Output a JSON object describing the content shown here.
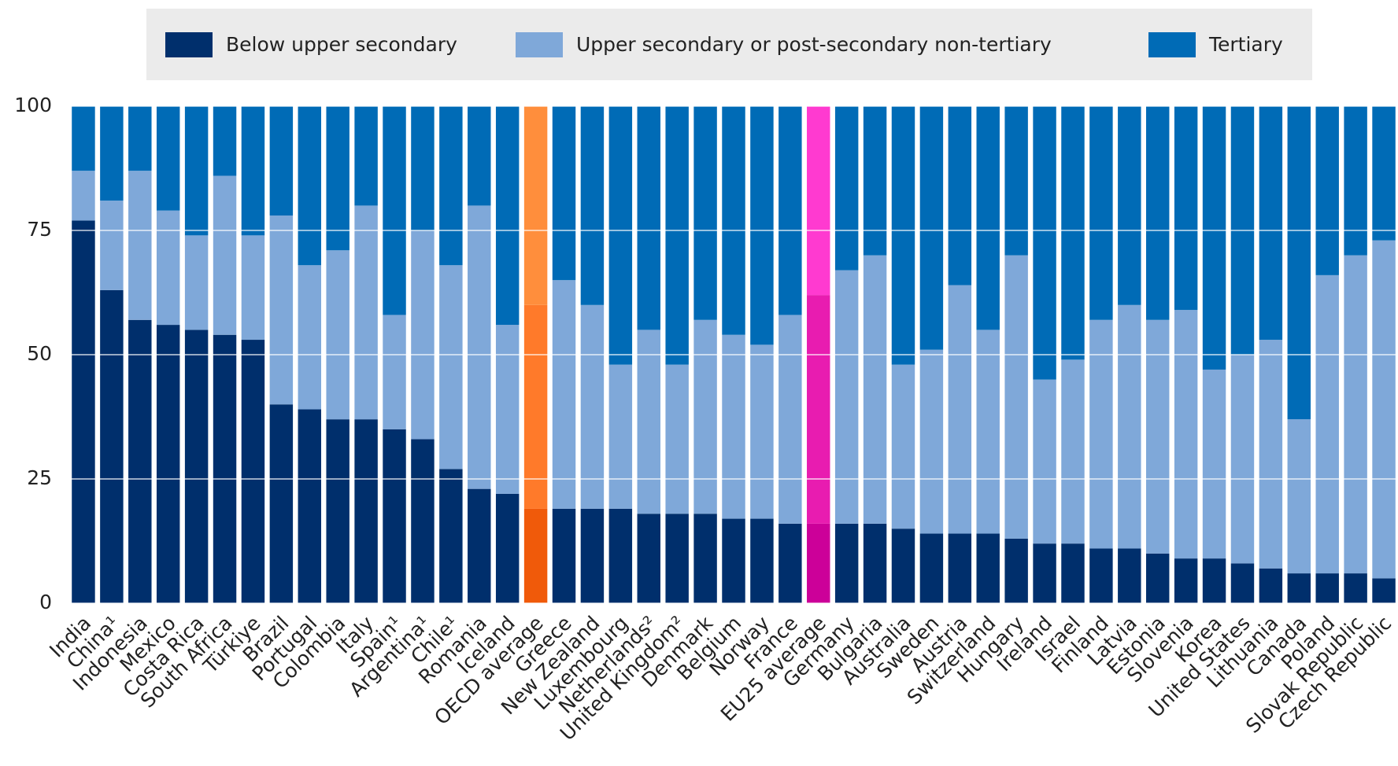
{
  "chart_data": {
    "type": "stacked_bar",
    "categories": [
      "India",
      "China¹",
      "Indonesia",
      "Mexico",
      "Costa Rica",
      "South Africa",
      "Türkiye",
      "Brazil",
      "Portugal",
      "Colombia",
      "Italy",
      "Spain¹",
      "Argentina¹",
      "Chile¹",
      "Romania",
      "Iceland",
      "OECD average",
      "Greece",
      "New Zealand",
      "Luxembourg",
      "Netherlands²",
      "United Kingdom²",
      "Denmark",
      "Belgium",
      "Norway",
      "France",
      "EU25 average",
      "Germany",
      "Bulgaria",
      "Australia",
      "Sweden",
      "Austria",
      "Switzerland",
      "Hungary",
      "Ireland",
      "Israel",
      "Finland",
      "Latvia",
      "Estonia",
      "Slovenia",
      "Korea",
      "United States",
      "Lithuania",
      "Canada",
      "Poland",
      "Slovak Republic",
      "Czech Republic"
    ],
    "series": [
      {
        "name": "Below upper secondary",
        "color": "#002f6c",
        "values": [
          77,
          63,
          57,
          56,
          55,
          54,
          53,
          40,
          39,
          37,
          37,
          35,
          33,
          27,
          23,
          22,
          19,
          19,
          19,
          19,
          18,
          18,
          18,
          17,
          17,
          16,
          16,
          16,
          16,
          15,
          14,
          14,
          14,
          13,
          12,
          12,
          11,
          11,
          10,
          9,
          9,
          8,
          7,
          6,
          6,
          6,
          5
        ]
      },
      {
        "name": "Upper secondary or post-secondary non-tertiary",
        "color": "#7fa8d9",
        "values": [
          10,
          18,
          30,
          23,
          19,
          32,
          21,
          38,
          29,
          34,
          43,
          23,
          42,
          41,
          57,
          34,
          41,
          46,
          41,
          29,
          37,
          30,
          39,
          37,
          35,
          42,
          46,
          51,
          54,
          33,
          37,
          50,
          41,
          57,
          33,
          37,
          46,
          49,
          47,
          50,
          38,
          42,
          46,
          31,
          60,
          64,
          68
        ]
      },
      {
        "name": "Tertiary",
        "color": "#006bb6",
        "values": [
          13,
          19,
          13,
          21,
          26,
          14,
          26,
          22,
          32,
          29,
          20,
          42,
          25,
          32,
          20,
          44,
          40,
          35,
          40,
          52,
          45,
          52,
          43,
          46,
          48,
          42,
          38,
          33,
          30,
          52,
          49,
          36,
          45,
          30,
          55,
          51,
          43,
          40,
          43,
          41,
          53,
          50,
          47,
          63,
          34,
          30,
          27
        ]
      }
    ],
    "highlight_colors": {
      "OECD average": [
        "#f05a0a",
        "#ff7a2a",
        "#ff8e3c"
      ],
      "EU25 average": [
        "#cc0099",
        "#e81cb0",
        "#ff3ad0"
      ]
    },
    "ylim": [
      0,
      100
    ],
    "yticks": [
      0,
      25,
      50,
      75,
      100
    ],
    "grid": true,
    "legend": "top"
  }
}
